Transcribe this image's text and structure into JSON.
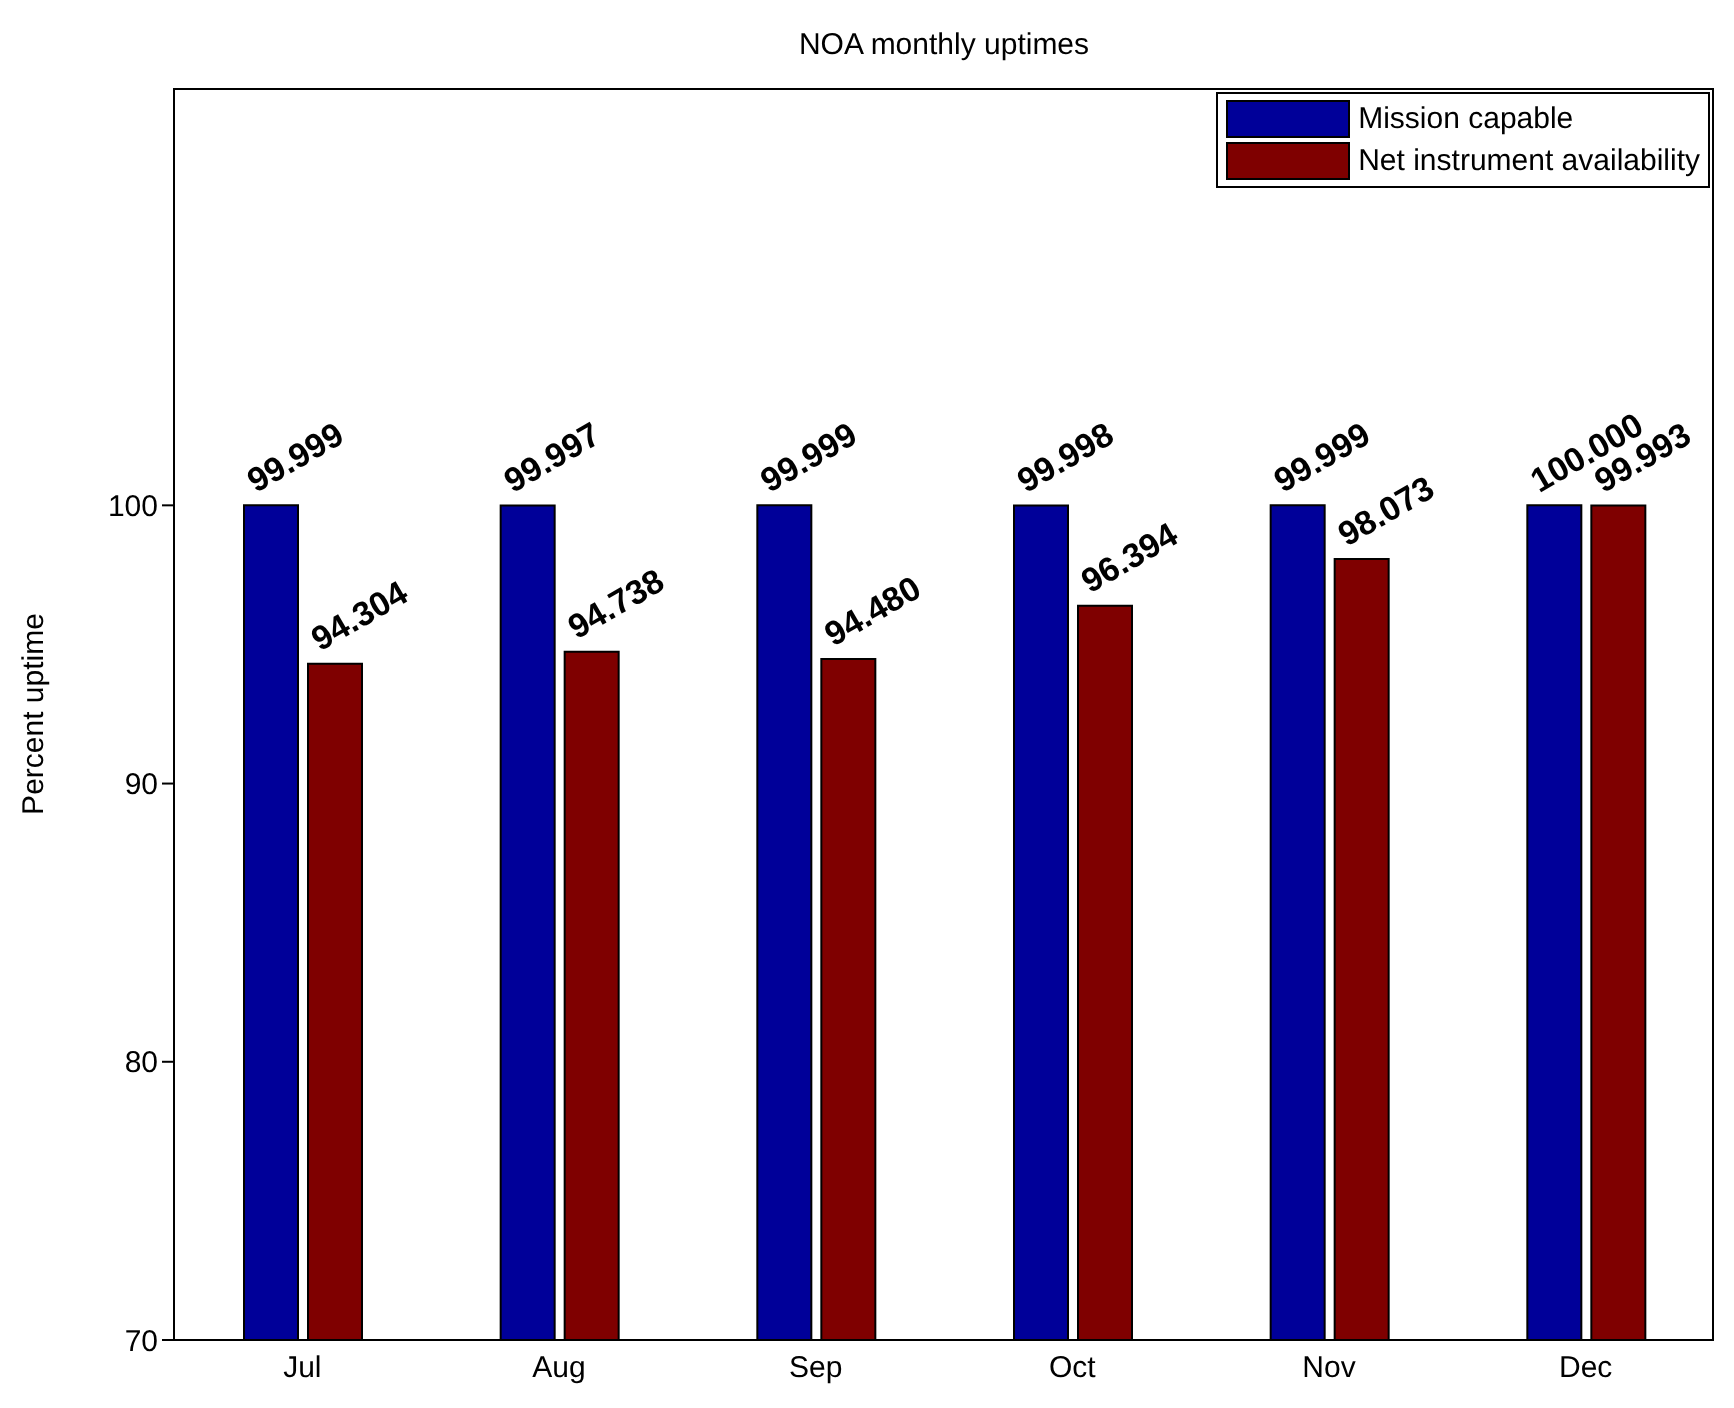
{
  "chart_data": {
    "type": "bar",
    "title": "NOA monthly uptimes",
    "ylabel": "Percent uptime",
    "categories": [
      "Jul",
      "Aug",
      "Sep",
      "Oct",
      "Nov",
      "Dec"
    ],
    "series": [
      {
        "name": "Mission capable",
        "color": "#000099",
        "values": [
          99.999,
          99.997,
          99.999,
          99.998,
          99.999,
          100.0
        ],
        "value_labels": [
          "99.999",
          "99.997",
          "99.999",
          "99.998",
          "99.999",
          "100.000"
        ]
      },
      {
        "name": "Net instrument availability",
        "color": "#7f0000",
        "values": [
          94.304,
          94.738,
          94.48,
          96.394,
          98.073,
          99.993
        ],
        "value_labels": [
          "94.304",
          "94.738",
          "94.480",
          "96.394",
          "98.073",
          "99.993"
        ]
      }
    ],
    "ylim": [
      70,
      115
    ],
    "yticks": [
      70,
      80,
      90,
      100
    ],
    "legend": "top right"
  }
}
